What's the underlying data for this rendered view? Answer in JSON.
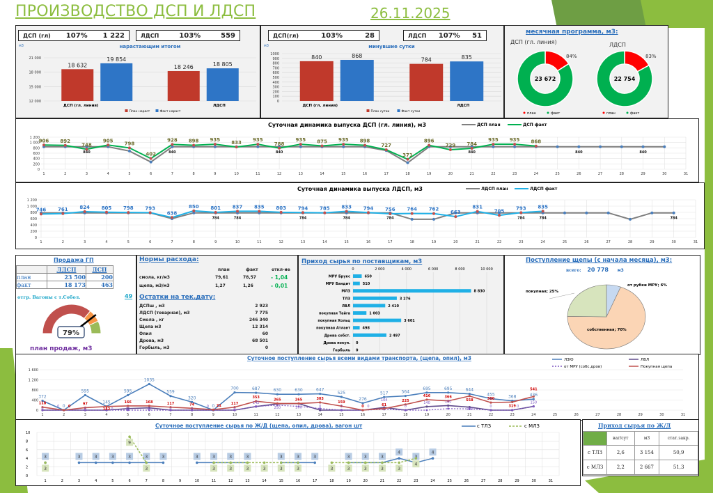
{
  "header": {
    "title": "ПРОИЗВОДСТВО ДСП И ЛДСП",
    "date": "26.11.2025"
  },
  "colors": {
    "accent_green": "#8cbd3f",
    "plan_red": "#c0392b",
    "fact_blue": "#2e75c6",
    "donut_green": "#00b050",
    "donut_red": "#ff0000"
  },
  "cumulative": {
    "kpi_dsp": {
      "label": "ДСП (гл)",
      "pct": "107%",
      "value": "1 222"
    },
    "kpi_ldsp": {
      "label": "ЛДСП",
      "pct": "103%",
      "value": "559"
    },
    "unit": "м3",
    "title": "нарастающим итогом",
    "legend_plan": "План нараст",
    "legend_fact": "Факт нараст"
  },
  "daily": {
    "kpi_dsp": {
      "label": "ДСП(гл)",
      "pct": "103%",
      "value": "28"
    },
    "kpi_ldsp": {
      "label": "ЛДСП",
      "pct": "107%",
      "value": "51"
    },
    "unit": "м3",
    "title": "минувшие сутки",
    "legend_plan": "План сутки",
    "legend_fact": "Факт сутки"
  },
  "monthly": {
    "title": "месячная программа, м3:",
    "dsp": {
      "label": "ДСП (гл. линия)",
      "total": "23 672",
      "pct": "84%",
      "pct_value": 84
    },
    "ldsp": {
      "label": "ЛДСП",
      "total": "22 754",
      "pct": "83%",
      "pct_value": 83
    },
    "legend_plan": "план",
    "legend_fact": "факт"
  },
  "sales": {
    "title": "Продажа ГП",
    "col1": "ЛДСП",
    "col2": "ДСП",
    "rows": [
      {
        "label": "план",
        "ldsp": "23 500",
        "dsp": "200"
      },
      {
        "label": "факт",
        "ldsp": "18 173",
        "dsp": "463"
      }
    ],
    "wagons_label": "отгр. Вагоны с т.Собол.",
    "wagons_value": "49",
    "gauge_pct": "79%",
    "gauge_value": 79,
    "gauge_caption": "план продаж, м3"
  },
  "norms": {
    "title": "Нормы расхода:",
    "headers": [
      "план",
      "факт",
      "откл-ие"
    ],
    "rows": [
      {
        "label": "смола, кг/м3",
        "plan": "79,61",
        "fact": "78,57",
        "dev": "- 1,04"
      },
      {
        "label": "щепа, м3/м3",
        "plan": "1,27",
        "fact": "1,26",
        "dev": "- 0,01"
      }
    ],
    "stock_title": "Остатки на тек.дату:",
    "stock": [
      {
        "label": "ДСПш , м3",
        "value": "2 923"
      },
      {
        "label": "ЛДСП (товарная), м3",
        "value": "7 775"
      },
      {
        "label": "Смола , кг",
        "value": "246 340"
      },
      {
        "label": "Щепа м3",
        "value": "12 314"
      },
      {
        "label": "Опил",
        "value": "60"
      },
      {
        "label": "Дрова, м3",
        "value": "68 501"
      },
      {
        "label": "Горбыль, м3",
        "value": "0"
      }
    ]
  },
  "chip": {
    "title": "Поступление щепы (с начала месяца), м3:",
    "total_label": "всего:",
    "total_value": "20 778",
    "total_unit": "м3"
  },
  "rail_table": {
    "title": "Приход сырья по Ж/Д",
    "headers": [
      "ваг/сут",
      "м3",
      "стат.закр."
    ],
    "rows": [
      {
        "label": "с ТЛЗ",
        "v1": "2,6",
        "v2": "3 154",
        "v3": "50,9"
      },
      {
        "label": "с МЛЗ",
        "v1": "2,2",
        "v2": "2 667",
        "v3": "51,3"
      }
    ]
  },
  "chart_data": [
    {
      "id": "cumulative",
      "type": "bar",
      "title": "нарастающим итогом",
      "ylabel": "м3",
      "categories": [
        "ДСП (гл. линия)",
        "ЛДСП"
      ],
      "series": [
        {
          "name": "План нараст",
          "values": [
            18632,
            18246
          ]
        },
        {
          "name": "Факт нараст",
          "values": [
            19854,
            18805
          ]
        }
      ],
      "data_labels": [
        [
          "18 632",
          "18 246"
        ],
        [
          "19 854",
          "18 805"
        ]
      ],
      "ylim": [
        12000,
        21000
      ],
      "yticks": [
        "12 000",
        "15 000",
        "18 000",
        "21 000"
      ]
    },
    {
      "id": "daily",
      "type": "bar",
      "title": "минувшие сутки",
      "ylabel": "м3",
      "categories": [
        "ДСП (гл. линия)",
        "ЛДСП"
      ],
      "series": [
        {
          "name": "План сутки",
          "values": [
            840,
            784
          ]
        },
        {
          "name": "Факт сутки",
          "values": [
            868,
            835
          ]
        }
      ],
      "ylim": [
        0,
        1000
      ],
      "yticks": [
        "0",
        "100",
        "200",
        "300",
        "400",
        "500",
        "600",
        "700",
        "800",
        "900",
        "1000"
      ]
    },
    {
      "id": "donut_dsp",
      "type": "pie",
      "title": "ДСП (гл. линия)",
      "labels": [
        "план",
        "факт"
      ],
      "values": [
        16,
        84
      ]
    },
    {
      "id": "donut_ldsp",
      "type": "pie",
      "title": "ЛДСП",
      "labels": [
        "план",
        "факт"
      ],
      "values": [
        17,
        83
      ]
    },
    {
      "id": "dsp_daily",
      "type": "line",
      "title": "Суточная динамика выпуска ДСП (гл. линия), м3",
      "x": [
        1,
        2,
        3,
        4,
        5,
        6,
        7,
        8,
        9,
        10,
        11,
        12,
        13,
        14,
        15,
        16,
        17,
        18,
        19,
        20,
        21,
        22,
        23,
        24,
        25,
        26,
        27,
        28,
        29,
        30,
        31
      ],
      "ylim": [
        0,
        1200
      ],
      "yticks": [
        "0",
        "200",
        "400",
        "600",
        "800",
        "1 000",
        "1 200"
      ],
      "series": [
        {
          "name": "ДСП план",
          "values": [
            840,
            840,
            840,
            840,
            680,
            270,
            840,
            840,
            840,
            840,
            840,
            840,
            840,
            840,
            840,
            840,
            700,
            240,
            840,
            840,
            840,
            840,
            840,
            840,
            840,
            840,
            840,
            840,
            840,
            840,
            null
          ]
        },
        {
          "name": "ДСП факт",
          "values": [
            906,
            892,
            748,
            905,
            798,
            402,
            928,
            898,
            935,
            833,
            935,
            788,
            935,
            875,
            935,
            898,
            727,
            371,
            896,
            729,
            784,
            935,
            935,
            868,
            null,
            null,
            null,
            null,
            null,
            null,
            null
          ]
        }
      ],
      "plan_labels": [
        {
          "x": 3,
          "text": "840"
        },
        {
          "x": 7,
          "text": "840"
        },
        {
          "x": 12,
          "text": "840"
        },
        {
          "x": 21,
          "text": "840"
        },
        {
          "x": 26,
          "text": "840"
        },
        {
          "x": 29,
          "text": "840"
        }
      ]
    },
    {
      "id": "ldsp_daily",
      "type": "line",
      "title": "Суточная динамика выпуска ЛДСП, м3",
      "x": [
        1,
        2,
        3,
        4,
        5,
        6,
        7,
        8,
        9,
        10,
        11,
        12,
        13,
        14,
        15,
        16,
        17,
        18,
        19,
        20,
        21,
        22,
        23,
        24,
        25,
        26,
        27,
        28,
        29,
        30,
        31
      ],
      "ylim": [
        0,
        1200
      ],
      "yticks": [
        "0",
        "200",
        "400",
        "600",
        "800",
        "1 000",
        "1 200"
      ],
      "series": [
        {
          "name": "ЛДСП план",
          "values": [
            784,
            784,
            784,
            784,
            784,
            784,
            600,
            784,
            784,
            784,
            784,
            784,
            784,
            784,
            784,
            784,
            784,
            580,
            580,
            784,
            784,
            784,
            784,
            784,
            784,
            784,
            784,
            580,
            784,
            784,
            null
          ]
        },
        {
          "name": "ЛДСП факт",
          "values": [
            746,
            761,
            824,
            805,
            798,
            793,
            638,
            850,
            801,
            837,
            835,
            803,
            794,
            785,
            833,
            794,
            756,
            764,
            762,
            663,
            831,
            705,
            793,
            835,
            null,
            null,
            null,
            null,
            null,
            null,
            null
          ]
        }
      ],
      "plan_labels": [
        {
          "x": 9,
          "text": "784"
        },
        {
          "x": 10,
          "text": "784"
        },
        {
          "x": 13,
          "text": "784"
        },
        {
          "x": 15,
          "text": "784"
        },
        {
          "x": 17,
          "text": "784"
        },
        {
          "x": 23,
          "text": "784"
        },
        {
          "x": 24,
          "text": "784"
        },
        {
          "x": 30,
          "text": "784"
        }
      ]
    },
    {
      "id": "suppliers",
      "type": "bar",
      "orientation": "horizontal",
      "title": "Приход сырья по поставщикам, м3",
      "categories": [
        "МРУ Брукс",
        "МРУ Бандит",
        "МЛЗ",
        "ТЛЗ",
        "ЛВЛ",
        "покупная Тайга",
        "покупная Хольц",
        "покупная Атлант",
        "Дрова собст.",
        "Дрова покуп.",
        "Горбыль"
      ],
      "values": [
        650,
        510,
        8830,
        3276,
        2410,
        1003,
        3601,
        498,
        2497,
        0,
        0
      ],
      "data_labels": [
        "650",
        "510",
        "8 830",
        "3 276",
        "2 410",
        "1 003",
        "3 601",
        "498",
        "2 497",
        "0",
        "0"
      ],
      "xlim": [
        0,
        10000
      ],
      "xticks": [
        "0",
        "2 000",
        "4 000",
        "6 000",
        "8 000",
        "10 000"
      ]
    },
    {
      "id": "chip_pie",
      "type": "pie",
      "title": "Поступление щепы (с начала месяца), м3",
      "labels": [
        "от рубки МРУ",
        "собственная",
        "покупная"
      ],
      "values": [
        6,
        70,
        25
      ],
      "data_labels": [
        "от рубки МРУ; 6%",
        "собственная; 70%",
        "покупная; 25%"
      ]
    },
    {
      "id": "raw_daily",
      "type": "line",
      "title": "Суточное поступление сырья всеми видами транспорта, (щепа, опил), м3",
      "x": [
        1,
        2,
        3,
        4,
        5,
        6,
        7,
        8,
        9,
        10,
        11,
        12,
        13,
        14,
        15,
        16,
        17,
        18,
        19,
        20,
        21,
        22,
        23,
        24,
        25,
        26,
        27,
        28,
        29,
        30,
        31
      ],
      "ylim": [
        0,
        1600
      ],
      "yticks": [
        "0",
        "400",
        "800",
        "1 200",
        "1 600"
      ],
      "series": [
        {
          "name": "ЛЗЮ",
          "values": [
            372,
            0,
            595,
            145,
            595,
            1035,
            559,
            320,
            0,
            700,
            687,
            630,
            630,
            647,
            525,
            276,
            517,
            564,
            695,
            695,
            644,
            455,
            368,
            436,
            null,
            null,
            null,
            null,
            null,
            null,
            null
          ]
        },
        {
          "name": "ЛВЛ",
          "values": [
            0,
            0,
            0,
            0,
            62,
            92,
            0,
            0,
            0,
            0,
            142,
            250,
            260,
            0,
            0,
            0,
            104,
            0,
            140,
            180,
            120,
            0,
            0,
            150,
            null,
            null,
            null,
            null,
            null,
            null,
            null
          ]
        },
        {
          "name": "от МРУ (собс.дров)",
          "values": [
            0,
            0,
            0,
            0,
            0,
            0,
            0,
            0,
            0,
            0,
            150,
            195,
            148,
            65,
            0,
            0,
            30,
            0,
            0,
            60,
            50,
            0,
            0,
            150,
            null,
            null,
            null,
            null,
            null,
            null,
            null
          ]
        },
        {
          "name": "Покупная щепа",
          "values": [
            118,
            0,
            97,
            142,
            166,
            168,
            117,
            74,
            21,
            117,
            353,
            265,
            265,
            303,
            159,
            0,
            61,
            225,
            416,
            366,
            558,
            300,
            319,
            541,
            null,
            null,
            null,
            null,
            null,
            null,
            null
          ]
        }
      ]
    },
    {
      "id": "rail_daily",
      "type": "line",
      "title": "Суточное поступление сырья по Ж/Д (щепа, опил, дрова), вагон шт",
      "x": [
        1,
        2,
        3,
        4,
        5,
        6,
        7,
        8,
        9,
        10,
        11,
        12,
        13,
        14,
        15,
        16,
        17,
        18,
        19,
        20,
        21,
        22,
        23,
        24,
        25,
        26,
        27,
        28,
        29,
        30,
        31
      ],
      "ylim": [
        0,
        10
      ],
      "yticks": [
        "0",
        "2",
        "4",
        "6",
        "8",
        "10"
      ],
      "series": [
        {
          "name": "с ТЛЗ",
          "values": [
            3,
            null,
            3,
            3,
            3,
            3,
            3,
            3,
            null,
            3,
            3,
            3,
            3,
            null,
            3,
            3,
            3,
            null,
            3,
            3,
            3,
            4,
            3,
            4,
            null,
            null,
            null,
            null,
            null,
            null,
            null
          ]
        },
        {
          "name": "с МЛЗ",
          "values": [
            3,
            null,
            null,
            null,
            null,
            9,
            3,
            null,
            null,
            null,
            3,
            3,
            3,
            3,
            3,
            3,
            null,
            3,
            3,
            3,
            3,
            3,
            4,
            null,
            null,
            null,
            null,
            null,
            null,
            null,
            null
          ]
        }
      ]
    }
  ]
}
